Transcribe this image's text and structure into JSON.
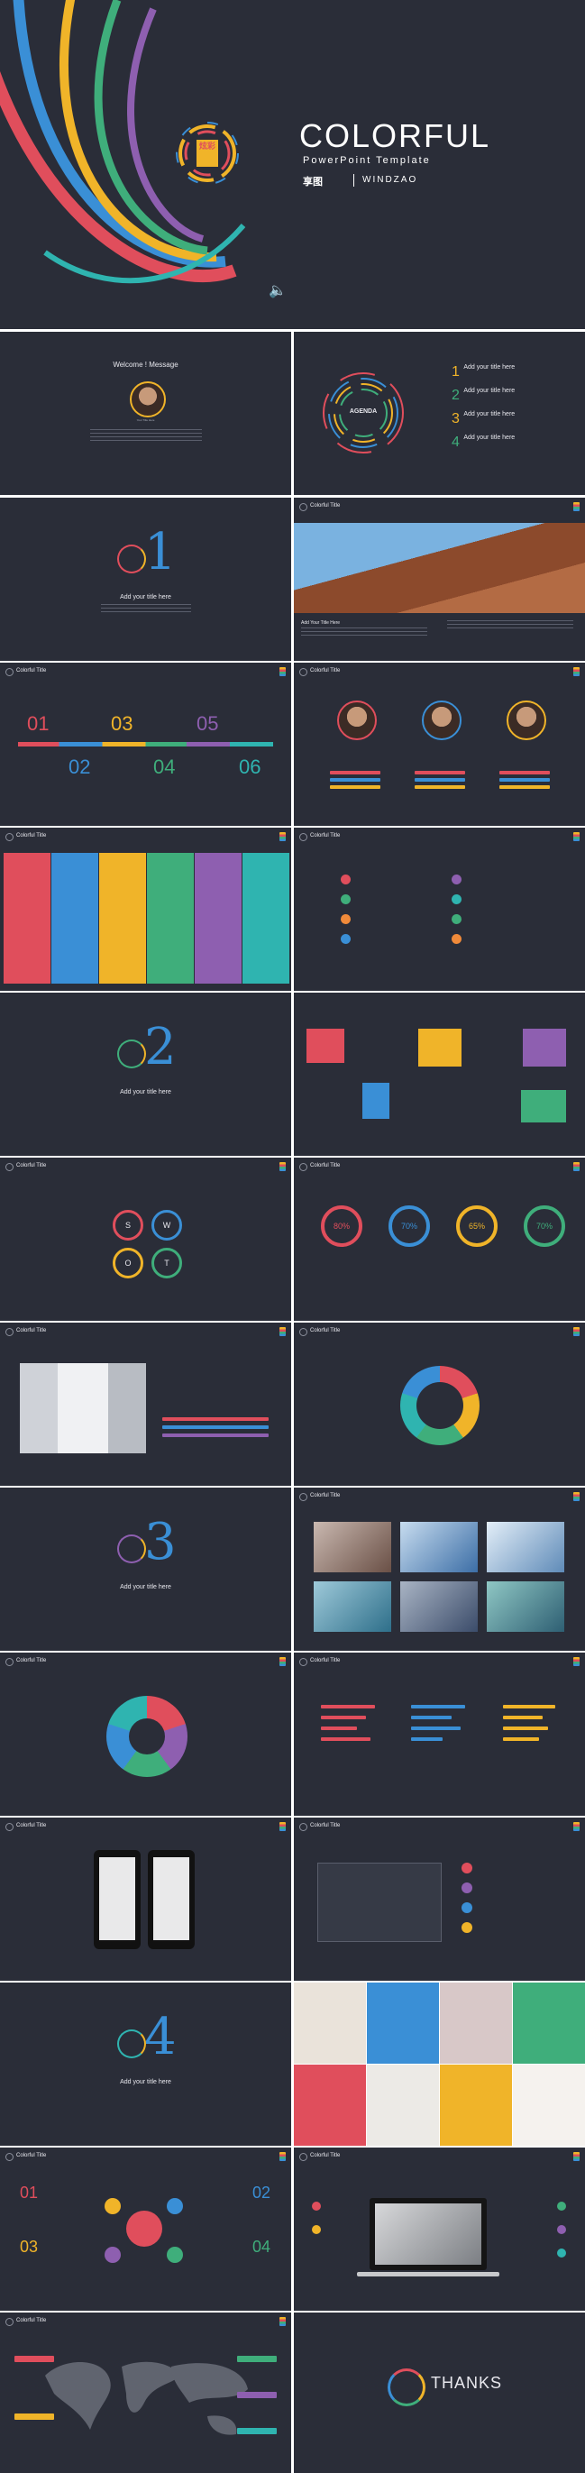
{
  "cover": {
    "title": "COLORFUL",
    "subtitle": "PowerPoint Template",
    "brand": "WINDZAO",
    "brand_logo_text": "享图",
    "logo_glyph": "炫彩"
  },
  "welcome": {
    "title": "Welcome ! Message",
    "name": "Your Title Here"
  },
  "agenda": {
    "center_label": "AGENDA",
    "items": [
      {
        "num": "1",
        "label": "Add your title here"
      },
      {
        "num": "2",
        "label": "Add your title here"
      },
      {
        "num": "3",
        "label": "Add your title here"
      },
      {
        "num": "4",
        "label": "Add your title here"
      }
    ]
  },
  "common": {
    "slide_title": "Colorful Title",
    "add_title": "Add your title here",
    "add_title_short": "Add your title here",
    "your_title": "Your Title Here",
    "add_text": "Add Your Title Here",
    "text_here": "Your Text Here",
    "title_here": "YOUR TITLE HERE"
  },
  "section_nums": [
    "1",
    "2",
    "3",
    "4"
  ],
  "numbers_slide": [
    "01",
    "02",
    "03",
    "04",
    "05",
    "06"
  ],
  "percentages": [
    "80%",
    "70%",
    "65%",
    "70%"
  ],
  "swot": [
    "S",
    "W",
    "O",
    "T"
  ],
  "thanks": {
    "title": "THANKS"
  },
  "colors": {
    "background": "#2a2d38",
    "red": "#e04e5c",
    "yellow": "#f0b429",
    "green": "#3fae7b",
    "blue": "#3a8fd6",
    "purple": "#8e5fb0",
    "teal": "#2fb4b0",
    "orange": "#f08a3a"
  }
}
